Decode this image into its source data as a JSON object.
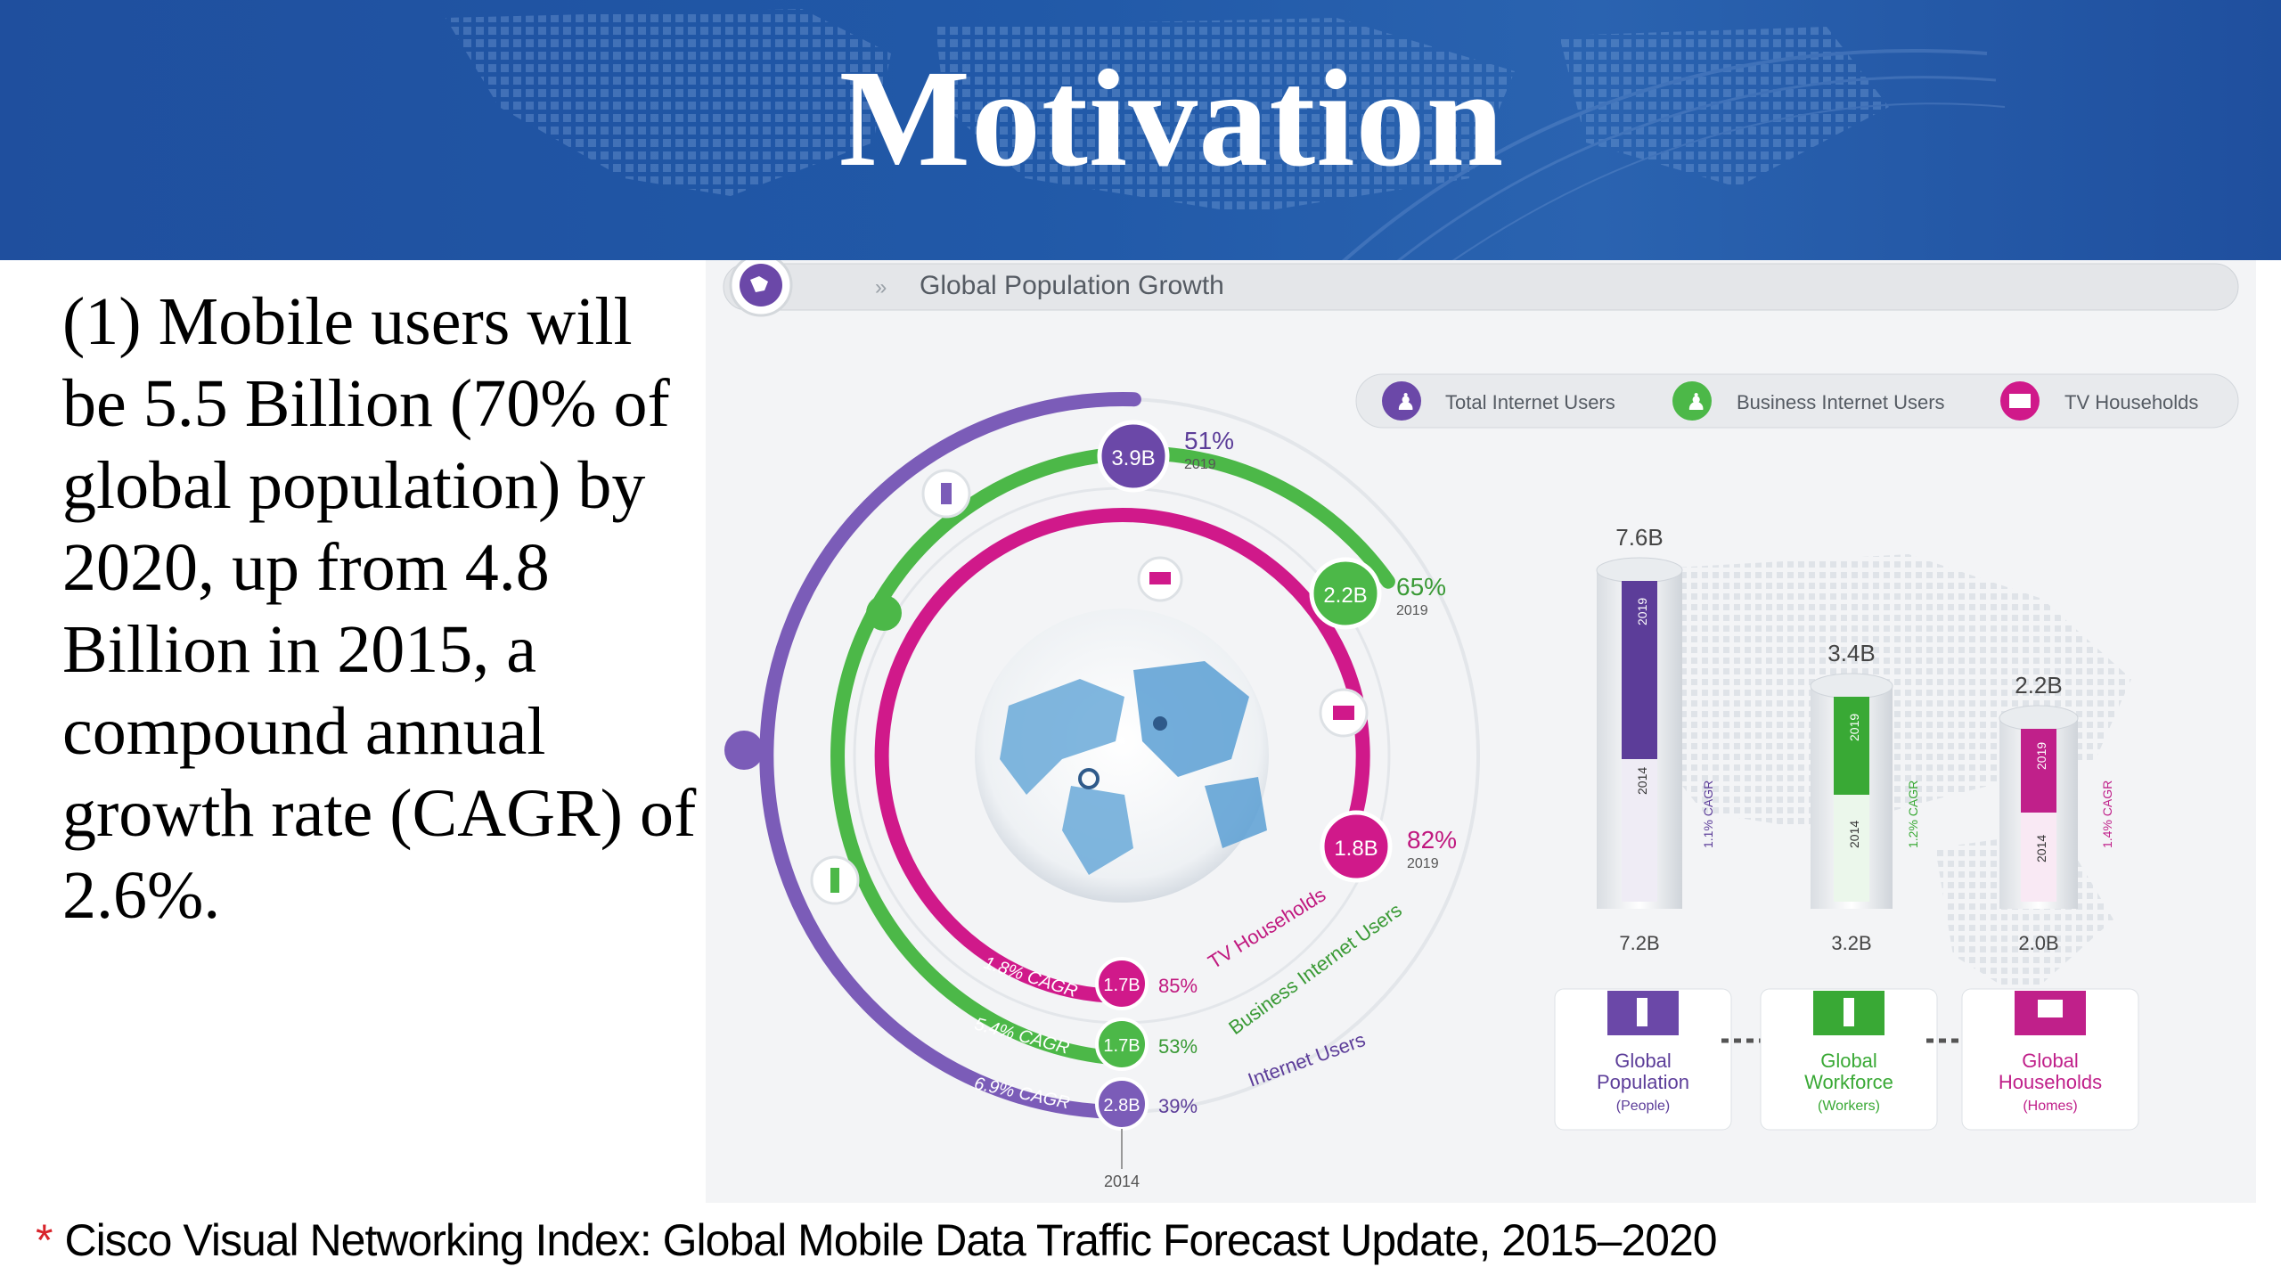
{
  "slide": {
    "title": "Motivation",
    "bullet": "(1) Mobile users will be 5.5 Billion (70% of global population) by 2020, up from 4.8 Billion in 2015, a compound annual growth rate (CAGR) of 2.6%.",
    "footnote_star": "*",
    "footnote": "Cisco Visual Networking Index: Global Mobile Data Traffic Forecast Update, 2015–2020"
  },
  "infographic": {
    "banner_title": "Global Population Growth",
    "legend": [
      "Total Internet Users",
      "Business Internet Users",
      "TV Households"
    ],
    "rings": {
      "outer": {
        "label": "Internet Users",
        "cagr": "6.9% CAGR",
        "start_value": "2.8B",
        "start_pct": "39%",
        "end_value": "3.9B",
        "end_pct": "51%",
        "end_year": "2019"
      },
      "middle": {
        "label": "Business Internet Users",
        "cagr": "5.4% CAGR",
        "start_value": "1.7B",
        "start_pct": "53%",
        "end_value": "2.2B",
        "end_pct": "65%",
        "end_year": "2019"
      },
      "inner": {
        "label": "TV Households",
        "cagr": "1.8% CAGR",
        "start_value": "1.7B",
        "start_pct": "85%",
        "end_value": "1.8B",
        "end_pct": "82%",
        "end_year": "2019"
      },
      "start_year": "2014"
    },
    "bars": [
      {
        "top": "7.6B",
        "bottom": "7.2B",
        "cagr": "1.1% CAGR",
        "year_top": "2019",
        "year_bottom": "2014",
        "label_1": "Global",
        "label_2": "Population",
        "label_3": "(People)",
        "color": "#5c3d99"
      },
      {
        "top": "3.4B",
        "bottom": "3.2B",
        "cagr": "1.2% CAGR",
        "year_top": "2019",
        "year_bottom": "2014",
        "label_1": "Global",
        "label_2": "Workforce",
        "label_3": "(Workers)",
        "color": "#39a935"
      },
      {
        "top": "2.2B",
        "bottom": "2.0B",
        "cagr": "1.4% CAGR",
        "year_top": "2019",
        "year_bottom": "2014",
        "label_1": "Global",
        "label_2": "Households",
        "label_3": "(Homes)",
        "color": "#c0208a"
      }
    ],
    "colors": {
      "purple": "#6b48a8",
      "green": "#4cb848",
      "magenta": "#d0198a",
      "header_blue": "#2159a8",
      "footnote_star": "#d8232a"
    }
  }
}
